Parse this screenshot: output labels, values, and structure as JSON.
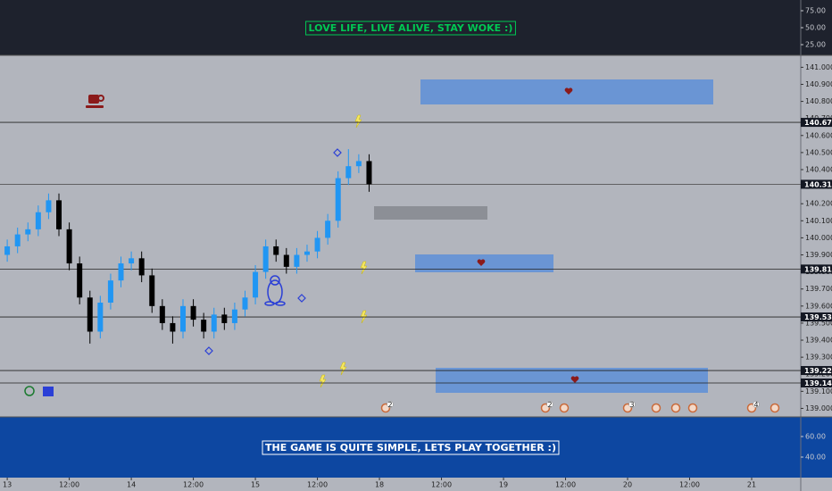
{
  "chart_data": [
    {
      "type": "indicator",
      "title": "LOVE LIFE, LIVE ALIVE, STAY WOKE :)",
      "ylim": [
        9.2,
        90.8
      ],
      "yticks": [
        {
          "value": 75,
          "label": "75.00"
        },
        {
          "value": 50,
          "label": "50.00"
        },
        {
          "value": 25,
          "label": "25.00"
        }
      ]
    },
    {
      "type": "candlestick",
      "x": [
        0,
        2,
        4,
        6,
        8,
        10,
        12,
        14,
        16,
        18,
        20,
        22,
        24,
        26,
        28,
        30,
        32,
        34,
        36,
        38,
        40,
        42,
        44,
        46,
        48,
        50,
        52,
        54,
        56,
        58,
        60,
        62,
        64,
        66,
        68,
        70
      ],
      "open": [
        139.9,
        139.95,
        140.02,
        140.05,
        140.15,
        140.22,
        140.05,
        139.85,
        139.65,
        139.45,
        139.62,
        139.75,
        139.85,
        139.88,
        139.78,
        139.6,
        139.5,
        139.45,
        139.6,
        139.52,
        139.45,
        139.55,
        139.5,
        139.58,
        139.65,
        139.8,
        139.95,
        139.9,
        139.83,
        139.9,
        139.92,
        140.0,
        140.1,
        140.35,
        140.42,
        140.45
      ],
      "high": [
        139.99,
        140.06,
        140.09,
        140.19,
        140.26,
        140.26,
        140.09,
        139.89,
        139.69,
        139.66,
        139.79,
        139.89,
        139.92,
        139.92,
        139.82,
        139.64,
        139.54,
        139.64,
        139.64,
        139.56,
        139.59,
        139.59,
        139.62,
        139.69,
        139.84,
        139.99,
        139.99,
        139.94,
        139.94,
        139.96,
        140.04,
        140.14,
        140.39,
        140.52,
        140.49,
        140.49
      ],
      "low": [
        139.86,
        139.91,
        139.98,
        140.01,
        140.11,
        140.01,
        139.81,
        139.61,
        139.38,
        139.41,
        139.58,
        139.71,
        139.81,
        139.74,
        139.56,
        139.46,
        139.38,
        139.41,
        139.48,
        139.41,
        139.41,
        139.46,
        139.46,
        139.54,
        139.61,
        139.76,
        139.86,
        139.79,
        139.79,
        139.86,
        139.88,
        139.96,
        140.06,
        140.31,
        140.38,
        140.27
      ],
      "close": [
        139.95,
        140.02,
        140.05,
        140.15,
        140.22,
        140.05,
        139.85,
        139.65,
        139.45,
        139.62,
        139.75,
        139.85,
        139.88,
        139.78,
        139.6,
        139.5,
        139.45,
        139.6,
        139.52,
        139.45,
        139.55,
        139.5,
        139.58,
        139.65,
        139.8,
        139.95,
        139.9,
        139.83,
        139.9,
        139.92,
        140.0,
        140.1,
        140.35,
        140.42,
        140.45,
        140.314
      ],
      "up_color": "#2196f3",
      "down_color": "#000000",
      "xlim": [
        -1.4,
        153.5
      ],
      "ylim": [
        138.95,
        141.07
      ],
      "xticks": [
        {
          "value": 0,
          "label": "13"
        },
        {
          "value": 12,
          "label": "12:00"
        },
        {
          "value": 24,
          "label": "14"
        },
        {
          "value": 36,
          "label": "12:00"
        },
        {
          "value": 48,
          "label": "15"
        },
        {
          "value": 60,
          "label": "12:00"
        },
        {
          "value": 72,
          "label": "18"
        },
        {
          "value": 84,
          "label": "12:00"
        },
        {
          "value": 96,
          "label": "19"
        },
        {
          "value": 108,
          "label": "12:00"
        },
        {
          "value": 120,
          "label": "20"
        },
        {
          "value": 132,
          "label": "12:00"
        },
        {
          "value": 144,
          "label": "21"
        }
      ],
      "yticks": [
        {
          "value": 139.0,
          "label": "139.000"
        },
        {
          "value": 139.1,
          "label": "139.100"
        },
        {
          "value": 139.2,
          "label": "139.200"
        },
        {
          "value": 139.3,
          "label": "139.300"
        },
        {
          "value": 139.4,
          "label": "139.400"
        },
        {
          "value": 139.5,
          "label": "139.500"
        },
        {
          "value": 139.6,
          "label": "139.600"
        },
        {
          "value": 139.7,
          "label": "139.700"
        },
        {
          "value": 139.8,
          "label": "139.800"
        },
        {
          "value": 139.9,
          "label": "139.900"
        },
        {
          "value": 140.0,
          "label": "140.000"
        },
        {
          "value": 140.1,
          "label": "140.100"
        },
        {
          "value": 140.2,
          "label": "140.200"
        },
        {
          "value": 140.3,
          "label": "140.300"
        },
        {
          "value": 140.4,
          "label": "140.400"
        },
        {
          "value": 140.5,
          "label": "140.500"
        },
        {
          "value": 140.6,
          "label": "140.600"
        },
        {
          "value": 140.7,
          "label": "140.700"
        },
        {
          "value": 140.8,
          "label": "140.800"
        },
        {
          "value": 140.9,
          "label": "140.900"
        },
        {
          "value": 141.0,
          "label": "141.000"
        }
      ],
      "levels": [
        140.677,
        140.314,
        139.817,
        139.536,
        139.222,
        139.149
      ],
      "events": [
        2,
        2,
        3,
        4
      ]
    },
    {
      "type": "indicator",
      "title": "THE GAME IS QUITE SIMPLE, LETS PLAY TOGETHER :)",
      "ylim": [
        20,
        79.1
      ],
      "yticks": [
        {
          "value": 60,
          "label": "60.00"
        },
        {
          "value": 40,
          "label": "40.00"
        }
      ]
    }
  ]
}
